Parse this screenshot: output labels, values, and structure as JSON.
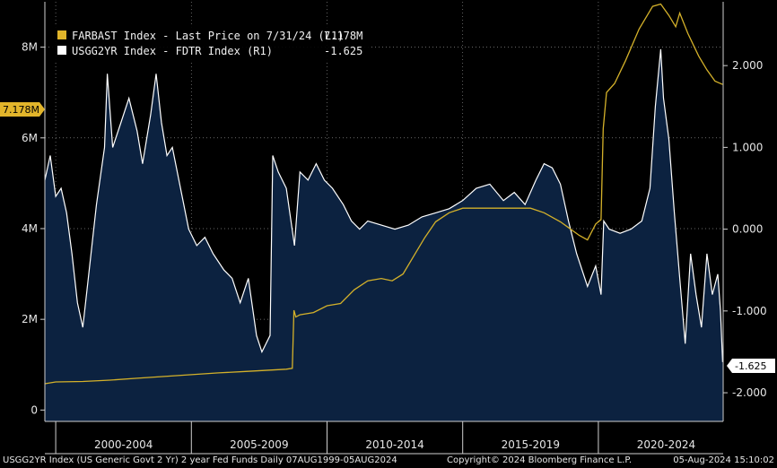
{
  "colors": {
    "background": "#000000",
    "area_fill": "#0c2240",
    "area_line": "#ffffff",
    "gold": "#d4b12a",
    "grid": "#8a8a8a"
  },
  "legend": [
    {
      "swatch": "#e0b42a",
      "label": "FARBAST Index - Last Price on 7/31/24 (L1)",
      "value": "7.178M"
    },
    {
      "swatch": "#ffffff",
      "label": "USGG2YR Index - FDTR Index (R1)",
      "value": "-1.625"
    }
  ],
  "tags": {
    "left": "7.178M",
    "right": "-1.625"
  },
  "footer": {
    "left": "USGG2YR Index (US Generic Govt 2 Yr) 2 year Fed Funds  Daily 07AUG1999-05AUG2024",
    "center": "Copyright© 2024 Bloomberg Finance L.P.",
    "right": "05-Aug-2024 15:10:02"
  },
  "chart_data": {
    "type": "line",
    "x_range": [
      1999.6,
      2024.6
    ],
    "x_ticks": [
      {
        "label": "2000-2004",
        "at": 2002.5
      },
      {
        "label": "2005-2009",
        "at": 2007.5
      },
      {
        "label": "2010-2014",
        "at": 2012.5
      },
      {
        "label": "2015-2019",
        "at": 2017.5
      },
      {
        "label": "2020-2024",
        "at": 2022.5
      }
    ],
    "x_boundaries": [
      2000,
      2005,
      2010,
      2015,
      2020
    ],
    "left_axis": {
      "ylim": [
        -0.25,
        9.0
      ],
      "ticks": [
        {
          "v": 0,
          "label": "0"
        },
        {
          "v": 2,
          "label": "2M"
        },
        {
          "v": 4,
          "label": "4M"
        },
        {
          "v": 6,
          "label": "6M"
        },
        {
          "v": 8,
          "label": "8M"
        }
      ],
      "unit": "M"
    },
    "right_axis": {
      "ylim": [
        -2.35,
        2.78
      ],
      "ticks": [
        {
          "v": 2,
          "label": "2.000"
        },
        {
          "v": 1,
          "label": "1.000"
        },
        {
          "v": 0,
          "label": "0.000"
        },
        {
          "v": -1,
          "label": "-1.000"
        },
        {
          "v": -2,
          "label": "-2.000"
        }
      ]
    },
    "series": [
      {
        "name": "FARBAST Index - Last Price on 7/31/24 (L1)",
        "axis": "left",
        "style": "line",
        "points": [
          [
            1999.6,
            0.58
          ],
          [
            2000.0,
            0.62
          ],
          [
            2001.0,
            0.63
          ],
          [
            2002.0,
            0.66
          ],
          [
            2003.0,
            0.7
          ],
          [
            2004.0,
            0.74
          ],
          [
            2005.0,
            0.78
          ],
          [
            2006.0,
            0.82
          ],
          [
            2007.0,
            0.85
          ],
          [
            2008.5,
            0.9
          ],
          [
            2008.72,
            0.92
          ],
          [
            2008.78,
            2.2
          ],
          [
            2008.85,
            2.05
          ],
          [
            2009.0,
            2.1
          ],
          [
            2009.5,
            2.15
          ],
          [
            2010.0,
            2.3
          ],
          [
            2010.5,
            2.35
          ],
          [
            2011.0,
            2.65
          ],
          [
            2011.5,
            2.85
          ],
          [
            2012.0,
            2.9
          ],
          [
            2012.4,
            2.85
          ],
          [
            2012.8,
            3.0
          ],
          [
            2013.2,
            3.4
          ],
          [
            2013.6,
            3.8
          ],
          [
            2014.0,
            4.15
          ],
          [
            2014.5,
            4.35
          ],
          [
            2015.0,
            4.45
          ],
          [
            2016.0,
            4.45
          ],
          [
            2017.0,
            4.45
          ],
          [
            2017.5,
            4.45
          ],
          [
            2018.0,
            4.35
          ],
          [
            2018.6,
            4.15
          ],
          [
            2019.3,
            3.85
          ],
          [
            2019.6,
            3.75
          ],
          [
            2019.9,
            4.1
          ],
          [
            2020.1,
            4.2
          ],
          [
            2020.18,
            6.2
          ],
          [
            2020.3,
            7.0
          ],
          [
            2020.6,
            7.2
          ],
          [
            2021.0,
            7.7
          ],
          [
            2021.5,
            8.4
          ],
          [
            2022.0,
            8.9
          ],
          [
            2022.3,
            8.95
          ],
          [
            2022.6,
            8.7
          ],
          [
            2022.85,
            8.45
          ],
          [
            2023.0,
            8.75
          ],
          [
            2023.3,
            8.3
          ],
          [
            2023.7,
            7.8
          ],
          [
            2024.0,
            7.5
          ],
          [
            2024.3,
            7.25
          ],
          [
            2024.58,
            7.178
          ]
        ]
      },
      {
        "name": "USGG2YR Index - FDTR Index (R1)",
        "axis": "right",
        "style": "area",
        "points": [
          [
            1999.6,
            0.6
          ],
          [
            1999.8,
            0.9
          ],
          [
            2000.0,
            0.4
          ],
          [
            2000.2,
            0.5
          ],
          [
            2000.4,
            0.2
          ],
          [
            2000.6,
            -0.3
          ],
          [
            2000.8,
            -0.9
          ],
          [
            2001.0,
            -1.2
          ],
          [
            2001.2,
            -0.6
          ],
          [
            2001.5,
            0.3
          ],
          [
            2001.8,
            1.0
          ],
          [
            2001.9,
            1.9
          ],
          [
            2002.1,
            1.0
          ],
          [
            2002.4,
            1.3
          ],
          [
            2002.7,
            1.6
          ],
          [
            2003.0,
            1.2
          ],
          [
            2003.2,
            0.8
          ],
          [
            2003.5,
            1.4
          ],
          [
            2003.7,
            1.9
          ],
          [
            2003.9,
            1.3
          ],
          [
            2004.1,
            0.9
          ],
          [
            2004.3,
            1.0
          ],
          [
            2004.6,
            0.5
          ],
          [
            2004.9,
            0.0
          ],
          [
            2005.2,
            -0.2
          ],
          [
            2005.5,
            -0.1
          ],
          [
            2005.8,
            -0.3
          ],
          [
            2006.2,
            -0.5
          ],
          [
            2006.5,
            -0.6
          ],
          [
            2006.8,
            -0.9
          ],
          [
            2007.1,
            -0.6
          ],
          [
            2007.4,
            -1.3
          ],
          [
            2007.6,
            -1.5
          ],
          [
            2007.9,
            -1.3
          ],
          [
            2008.0,
            0.9
          ],
          [
            2008.2,
            0.7
          ],
          [
            2008.5,
            0.5
          ],
          [
            2008.8,
            -0.2
          ],
          [
            2009.0,
            0.7
          ],
          [
            2009.3,
            0.6
          ],
          [
            2009.6,
            0.8
          ],
          [
            2009.9,
            0.6
          ],
          [
            2010.2,
            0.5
          ],
          [
            2010.6,
            0.3
          ],
          [
            2010.9,
            0.1
          ],
          [
            2011.2,
            0.0
          ],
          [
            2011.5,
            0.1
          ],
          [
            2012.0,
            0.05
          ],
          [
            2012.5,
            0.0
          ],
          [
            2013.0,
            0.05
          ],
          [
            2013.5,
            0.15
          ],
          [
            2014.0,
            0.2
          ],
          [
            2014.5,
            0.25
          ],
          [
            2015.0,
            0.35
          ],
          [
            2015.5,
            0.5
          ],
          [
            2016.0,
            0.55
          ],
          [
            2016.5,
            0.35
          ],
          [
            2016.9,
            0.45
          ],
          [
            2017.3,
            0.3
          ],
          [
            2017.7,
            0.6
          ],
          [
            2018.0,
            0.8
          ],
          [
            2018.3,
            0.75
          ],
          [
            2018.6,
            0.55
          ],
          [
            2018.9,
            0.1
          ],
          [
            2019.2,
            -0.3
          ],
          [
            2019.6,
            -0.7
          ],
          [
            2019.9,
            -0.45
          ],
          [
            2020.1,
            -0.8
          ],
          [
            2020.2,
            0.1
          ],
          [
            2020.4,
            0.0
          ],
          [
            2020.8,
            -0.05
          ],
          [
            2021.2,
            0.0
          ],
          [
            2021.6,
            0.1
          ],
          [
            2021.9,
            0.5
          ],
          [
            2022.1,
            1.5
          ],
          [
            2022.3,
            2.2
          ],
          [
            2022.4,
            1.6
          ],
          [
            2022.6,
            1.1
          ],
          [
            2022.8,
            0.2
          ],
          [
            2023.0,
            -0.6
          ],
          [
            2023.2,
            -1.4
          ],
          [
            2023.4,
            -0.3
          ],
          [
            2023.6,
            -0.8
          ],
          [
            2023.8,
            -1.2
          ],
          [
            2024.0,
            -0.3
          ],
          [
            2024.2,
            -0.8
          ],
          [
            2024.4,
            -0.55
          ],
          [
            2024.5,
            -1.0
          ],
          [
            2024.58,
            -1.625
          ]
        ]
      }
    ]
  }
}
